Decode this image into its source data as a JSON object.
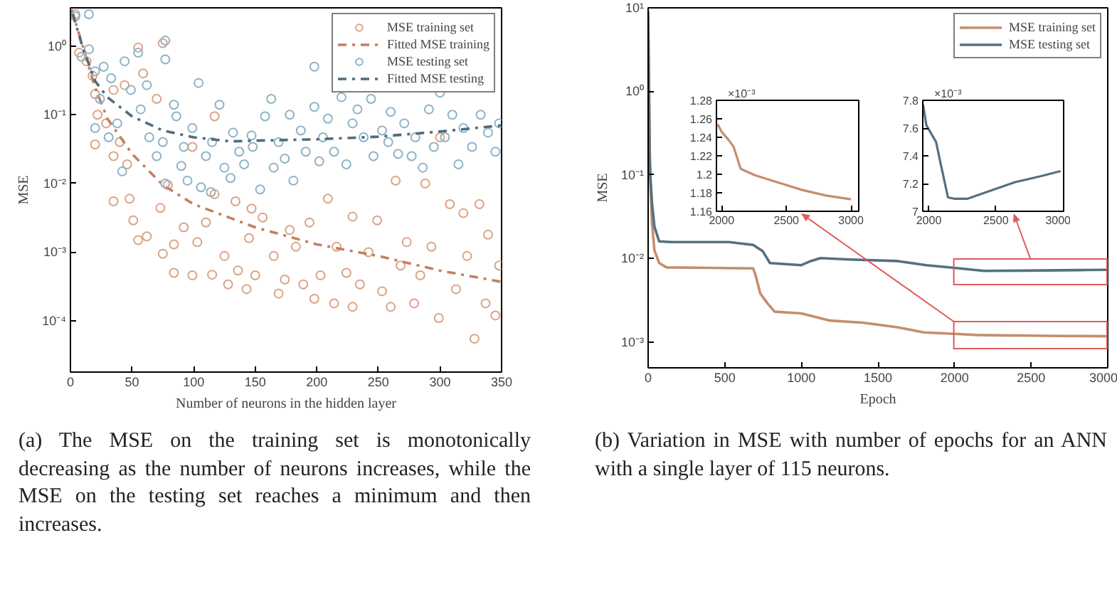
{
  "chart_data": [
    {
      "type": "scatter",
      "xlabel": "Number of neurons in the hidden layer",
      "ylabel": "MSE",
      "xlim": [
        0,
        350
      ],
      "xticks": [
        0,
        50,
        100,
        150,
        200,
        250,
        300,
        350
      ],
      "ylim": [
        1.8e-05,
        3.6
      ],
      "yticks": [
        {
          "value": 0.0001,
          "label": "10⁻⁴"
        },
        {
          "value": 0.001,
          "label": "10⁻³"
        },
        {
          "value": 0.01,
          "label": "10⁻²"
        },
        {
          "value": 0.1,
          "label": "10⁻¹"
        },
        {
          "value": 1,
          "label": "10⁰"
        }
      ],
      "log": "y",
      "legend": "top right",
      "annotations": [
        "(a) The MSE on the training set is monotonically decreasing as the number of neurons increases, while the MSE on the testing set reaches a minimum and then increases."
      ],
      "series": [
        {
          "name": "MSE training set",
          "type": "scatter",
          "marker": "circle",
          "color": "#dba384",
          "x": [
            4,
            7,
            13,
            18,
            20,
            22,
            20,
            29,
            35,
            44,
            35,
            40,
            46,
            35,
            48,
            55,
            51,
            62,
            59,
            55,
            75,
            70,
            73,
            75,
            84,
            84,
            79,
            92,
            99,
            103,
            99,
            110,
            117,
            115,
            117,
            125,
            128,
            134,
            136,
            143,
            147,
            145,
            150,
            156,
            165,
            169,
            174,
            178,
            183,
            189,
            194,
            198,
            203,
            209,
            214,
            216,
            224,
            229,
            229,
            235,
            242,
            249,
            253,
            260,
            264,
            268,
            273,
            279,
            284,
            288,
            293,
            299,
            300,
            308,
            313,
            319,
            322,
            328,
            332,
            337,
            339,
            345,
            348
          ],
          "values": [
            2.9,
            0.8,
            0.6,
            0.37,
            0.2,
            0.1,
            0.037,
            0.075,
            0.23,
            0.27,
            0.025,
            0.04,
            0.019,
            0.0055,
            0.006,
            0.0015,
            0.0029,
            0.0017,
            0.4,
            0.95,
            1.1,
            0.17,
            0.0044,
            0.00095,
            0.0013,
            0.0005,
            0.0095,
            0.0023,
            0.00046,
            0.0014,
            0.034,
            0.0027,
            0.007,
            0.00047,
            0.095,
            0.00088,
            0.00034,
            0.0055,
            0.00054,
            0.00029,
            0.0043,
            0.0016,
            0.00046,
            0.0032,
            0.00088,
            0.00025,
            0.0004,
            0.0021,
            0.0012,
            0.00034,
            0.0027,
            0.00021,
            0.00046,
            0.006,
            0.00018,
            0.0012,
            0.0005,
            0.0033,
            0.00016,
            0.00034,
            0.001,
            0.0029,
            0.00027,
            0.00016,
            0.011,
            0.00064,
            0.0014,
            0.00018,
            0.00046,
            0.01,
            0.0012,
            0.00011,
            0.047,
            0.005,
            0.00029,
            0.0037,
            0.00088,
            5.5e-05,
            0.005,
            0.00018,
            0.0018,
            0.00012,
            0.00064
          ]
        },
        {
          "name": "Fitted MSE training",
          "type": "line",
          "line_style": "dashdot",
          "color": "#c4805f",
          "x": [
            1,
            10,
            20,
            30,
            50,
            75,
            100,
            150,
            200,
            250,
            300,
            350
          ],
          "values": [
            3.4,
            1,
            0.25,
            0.088,
            0.027,
            0.0095,
            0.005,
            0.0023,
            0.0013,
            0.00088,
            0.00054,
            0.00037
          ]
        },
        {
          "name": "MSE testing set",
          "type": "scatter",
          "marker": "circle",
          "color": "#8db3c7",
          "x": [
            4,
            15,
            9,
            15,
            20,
            24,
            20,
            27,
            33,
            31,
            38,
            44,
            42,
            49,
            55,
            57,
            62,
            64,
            70,
            77,
            77,
            75,
            77,
            84,
            86,
            90,
            92,
            95,
            99,
            104,
            106,
            110,
            114,
            115,
            121,
            125,
            130,
            132,
            137,
            141,
            147,
            148,
            154,
            158,
            163,
            165,
            169,
            174,
            178,
            181,
            187,
            191,
            198,
            198,
            202,
            205,
            209,
            214,
            220,
            224,
            229,
            233,
            238,
            244,
            246,
            253,
            258,
            260,
            266,
            271,
            277,
            280,
            286,
            291,
            295,
            300,
            304,
            310,
            315,
            319,
            326,
            333,
            339,
            345,
            348
          ],
          "values": [
            2.7,
            2.9,
            0.7,
            0.9,
            0.43,
            0.17,
            0.064,
            0.5,
            0.34,
            0.047,
            0.075,
            0.6,
            0.015,
            0.23,
            0.8,
            0.12,
            0.27,
            0.047,
            0.025,
            1.2,
            0.64,
            0.04,
            0.01,
            0.14,
            0.095,
            0.018,
            0.034,
            0.011,
            0.064,
            0.29,
            0.0088,
            0.025,
            0.0075,
            0.04,
            0.14,
            0.017,
            0.012,
            0.055,
            0.029,
            0.019,
            0.05,
            0.034,
            0.0082,
            0.095,
            0.17,
            0.017,
            0.04,
            0.023,
            0.1,
            0.011,
            0.059,
            0.029,
            0.5,
            0.13,
            0.021,
            0.047,
            0.088,
            0.029,
            0.18,
            0.019,
            0.075,
            0.12,
            0.047,
            0.17,
            0.025,
            0.059,
            0.04,
            0.11,
            0.027,
            0.075,
            0.025,
            0.047,
            0.017,
            0.12,
            0.034,
            0.21,
            0.047,
            0.1,
            0.019,
            0.064,
            0.034,
            0.1,
            0.055,
            0.029,
            0.075
          ]
        },
        {
          "name": "Fitted MSE testing",
          "type": "line",
          "line_style": "dashdot",
          "color": "#4f6c7c",
          "x": [
            2,
            10,
            20,
            30,
            50,
            75,
            100,
            130,
            150,
            200,
            250,
            300,
            350
          ],
          "values": [
            2.9,
            0.95,
            0.31,
            0.18,
            0.095,
            0.059,
            0.047,
            0.041,
            0.042,
            0.044,
            0.048,
            0.057,
            0.07
          ]
        }
      ]
    },
    {
      "type": "line",
      "xlabel": "Epoch",
      "ylabel": "MSE",
      "xlim": [
        0,
        3000
      ],
      "xticks": [
        0,
        500,
        1000,
        1500,
        2000,
        2500,
        3000
      ],
      "ylim": [
        0.00049,
        10
      ],
      "yticks": [
        {
          "value": 0.001,
          "label": "10⁻³"
        },
        {
          "value": 0.01,
          "label": "10⁻²"
        },
        {
          "value": 0.1,
          "label": "10⁻¹"
        },
        {
          "value": 1,
          "label": "10⁰"
        },
        {
          "value": 10,
          "label": "10¹"
        }
      ],
      "log": "y",
      "legend": "top right",
      "annotations": [
        "(b) Variation in MSE with number of epochs for an ANN with a single layer of 115 neurons."
      ],
      "series": [
        {
          "name": "MSE training set",
          "color": "#c48e6e",
          "x": [
            0,
            13,
            19,
            25,
            41,
            72,
            120,
            400,
            685,
            700,
            732,
            779,
            826,
            1000,
            1188,
            1400,
            1627,
            1800,
            2000,
            2150,
            2300,
            2500,
            2700,
            3000
          ],
          "values": [
            9,
            0.09,
            0.052,
            0.027,
            0.0125,
            0.0088,
            0.0078,
            0.0077,
            0.0076,
            0.0064,
            0.0038,
            0.0029,
            0.0023,
            0.0022,
            0.0018,
            0.0017,
            0.0015,
            0.0013,
            0.00125,
            0.00121,
            0.0012,
            0.00119,
            0.00118,
            0.00117
          ]
        },
        {
          "name": "MSE testing set",
          "color": "#55707f",
          "x": [
            0,
            9,
            16,
            25,
            41,
            72,
            151,
            528,
            685,
            748,
            795,
            1000,
            1062,
            1125,
            1313,
            1627,
            1815,
            2000,
            2192,
            2464,
            2821,
            3000
          ],
          "values": [
            9,
            0.18,
            0.087,
            0.046,
            0.024,
            0.016,
            0.0157,
            0.0157,
            0.0145,
            0.0122,
            0.0088,
            0.0083,
            0.0093,
            0.0101,
            0.0097,
            0.0093,
            0.0083,
            0.0077,
            0.0071,
            0.00715,
            0.00725,
            0.0073
          ]
        }
      ]
    },
    {
      "type": "line",
      "xlim": [
        1960,
        3060
      ],
      "xticks": [
        2000,
        2500,
        3000
      ],
      "ylim": [
        1.16,
        1.28
      ],
      "yticks": [
        1.16,
        1.18,
        1.2,
        1.22,
        1.24,
        1.26,
        1.28
      ],
      "annotations": [
        "×10⁻³"
      ],
      "series": [
        {
          "color": "#c48e6e",
          "x": [
            1970,
            2000,
            2055,
            2092,
            2147,
            2257,
            2441,
            2625,
            2809,
            3000
          ],
          "values": [
            1.254,
            1.246,
            1.237,
            1.23,
            1.206,
            1.199,
            1.191,
            1.183,
            1.177,
            1.173
          ]
        }
      ]
    },
    {
      "type": "line",
      "xlim": [
        1955,
        3005
      ],
      "xticks": [
        2000,
        2500,
        3000
      ],
      "ylim": [
        7,
        7.8
      ],
      "yticks": [
        7,
        7.2,
        7.4,
        7.6,
        7.8
      ],
      "annotations": [
        "×10⁻³"
      ],
      "series": [
        {
          "color": "#55707f",
          "x": [
            1957,
            1982,
            2054,
            2089,
            2143,
            2196,
            2286,
            2464,
            2643,
            2821,
            2982
          ],
          "values": [
            7.77,
            7.62,
            7.5,
            7.34,
            7.1,
            7.09,
            7.09,
            7.15,
            7.21,
            7.25,
            7.29
          ]
        }
      ]
    }
  ]
}
